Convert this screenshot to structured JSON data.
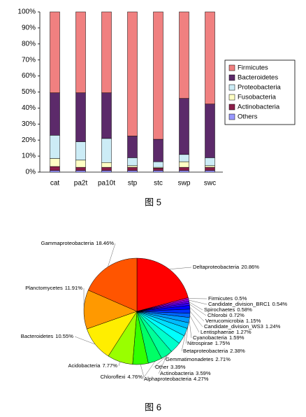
{
  "chart_data": [
    {
      "type": "bar",
      "stacked": true,
      "caption": "图 5",
      "categories": [
        "cat",
        "pa2t",
        "pa10t",
        "stp",
        "stc",
        "swp",
        "swc"
      ],
      "series": [
        {
          "name": "Others",
          "color": "#9999ff",
          "values": [
            1,
            1,
            1,
            1,
            1,
            1,
            1
          ]
        },
        {
          "name": "Actinobacteria",
          "color": "#8b1f4a",
          "values": [
            2.5,
            2,
            2,
            2,
            1.5,
            2,
            2
          ]
        },
        {
          "name": "Fusobacteria",
          "color": "#ffffc4",
          "values": [
            5,
            4.5,
            3,
            1,
            0.5,
            3.5,
            1
          ]
        },
        {
          "name": "Proteobacteria",
          "color": "#ccecf6",
          "values": [
            14.5,
            11.5,
            15,
            5,
            3.5,
            4.5,
            5
          ]
        },
        {
          "name": "Bacteroidetes",
          "color": "#5c2a6a",
          "values": [
            26.5,
            30.5,
            28.5,
            13.5,
            14,
            35,
            33.5
          ]
        },
        {
          "name": "Firmicutes",
          "color": "#f08080",
          "values": [
            50.5,
            50.5,
            50.5,
            77.5,
            79.5,
            54,
            57.5
          ]
        }
      ],
      "ylim": [
        0,
        100
      ],
      "yticks": [
        {
          "value": 0,
          "label": "0%"
        },
        {
          "value": 10,
          "label": "10%"
        },
        {
          "value": 20,
          "label": "20%"
        },
        {
          "value": 30,
          "label": "30%"
        },
        {
          "value": 40,
          "label": "40%"
        },
        {
          "value": 50,
          "label": "50%"
        },
        {
          "value": 60,
          "label": "60%"
        },
        {
          "value": 70,
          "label": "70%"
        },
        {
          "value": 80,
          "label": "80%"
        },
        {
          "value": 90,
          "label": "90%"
        },
        {
          "value": 100,
          "label": "100%"
        }
      ],
      "legend": "right"
    },
    {
      "type": "pie",
      "caption": "图 6",
      "categories": [
        "Deltaproteobacteria",
        "Firmicutes",
        "Candidate_division_BRC1",
        "Spirochaetes",
        "Chlorobi",
        "Verrucomicrobia",
        "Candidate_division_WS3",
        "Lentisphaerae",
        "Cyanobacteria",
        "Nitrospirae",
        "Betaproteobacteria",
        "Gemmatimonadetes",
        "Other",
        "Actinobacteria",
        "Alphaproteobacteria",
        "Chloroflexi",
        "Acidobacteria",
        "Bacteroidetes",
        "Planctomycetes",
        "Gammaproteobacteria"
      ],
      "values": [
        20.86,
        0.5,
        0.54,
        0.58,
        0.72,
        1.15,
        1.24,
        1.27,
        1.59,
        1.75,
        2.38,
        2.71,
        3.39,
        3.59,
        4.27,
        4.76,
        7.77,
        10.55,
        11.91,
        18.46
      ],
      "value_labels": [
        "20.86%",
        "0.5%",
        "0.54%",
        "0.58%",
        "0.72%",
        "1.15%",
        "1.24%",
        "1.27%",
        "1.59%",
        "1.75%",
        "2.38%",
        "2.71%",
        "3.39%",
        "3.59%",
        "4.27%",
        "4.76%",
        "7.77%",
        "10.55%",
        "11.91%",
        "18.46%"
      ],
      "colors": [
        "#ff0000",
        "#cc00cc",
        "#9900ff",
        "#6600ff",
        "#3300ff",
        "#0000ff",
        "#0033ff",
        "#0066ff",
        "#0099ff",
        "#00bbff",
        "#00ddff",
        "#00ffff",
        "#00ffcc",
        "#00ff99",
        "#00ff66",
        "#33ff00",
        "#99ff00",
        "#ffee00",
        "#ff9900",
        "#ff5500"
      ]
    }
  ]
}
